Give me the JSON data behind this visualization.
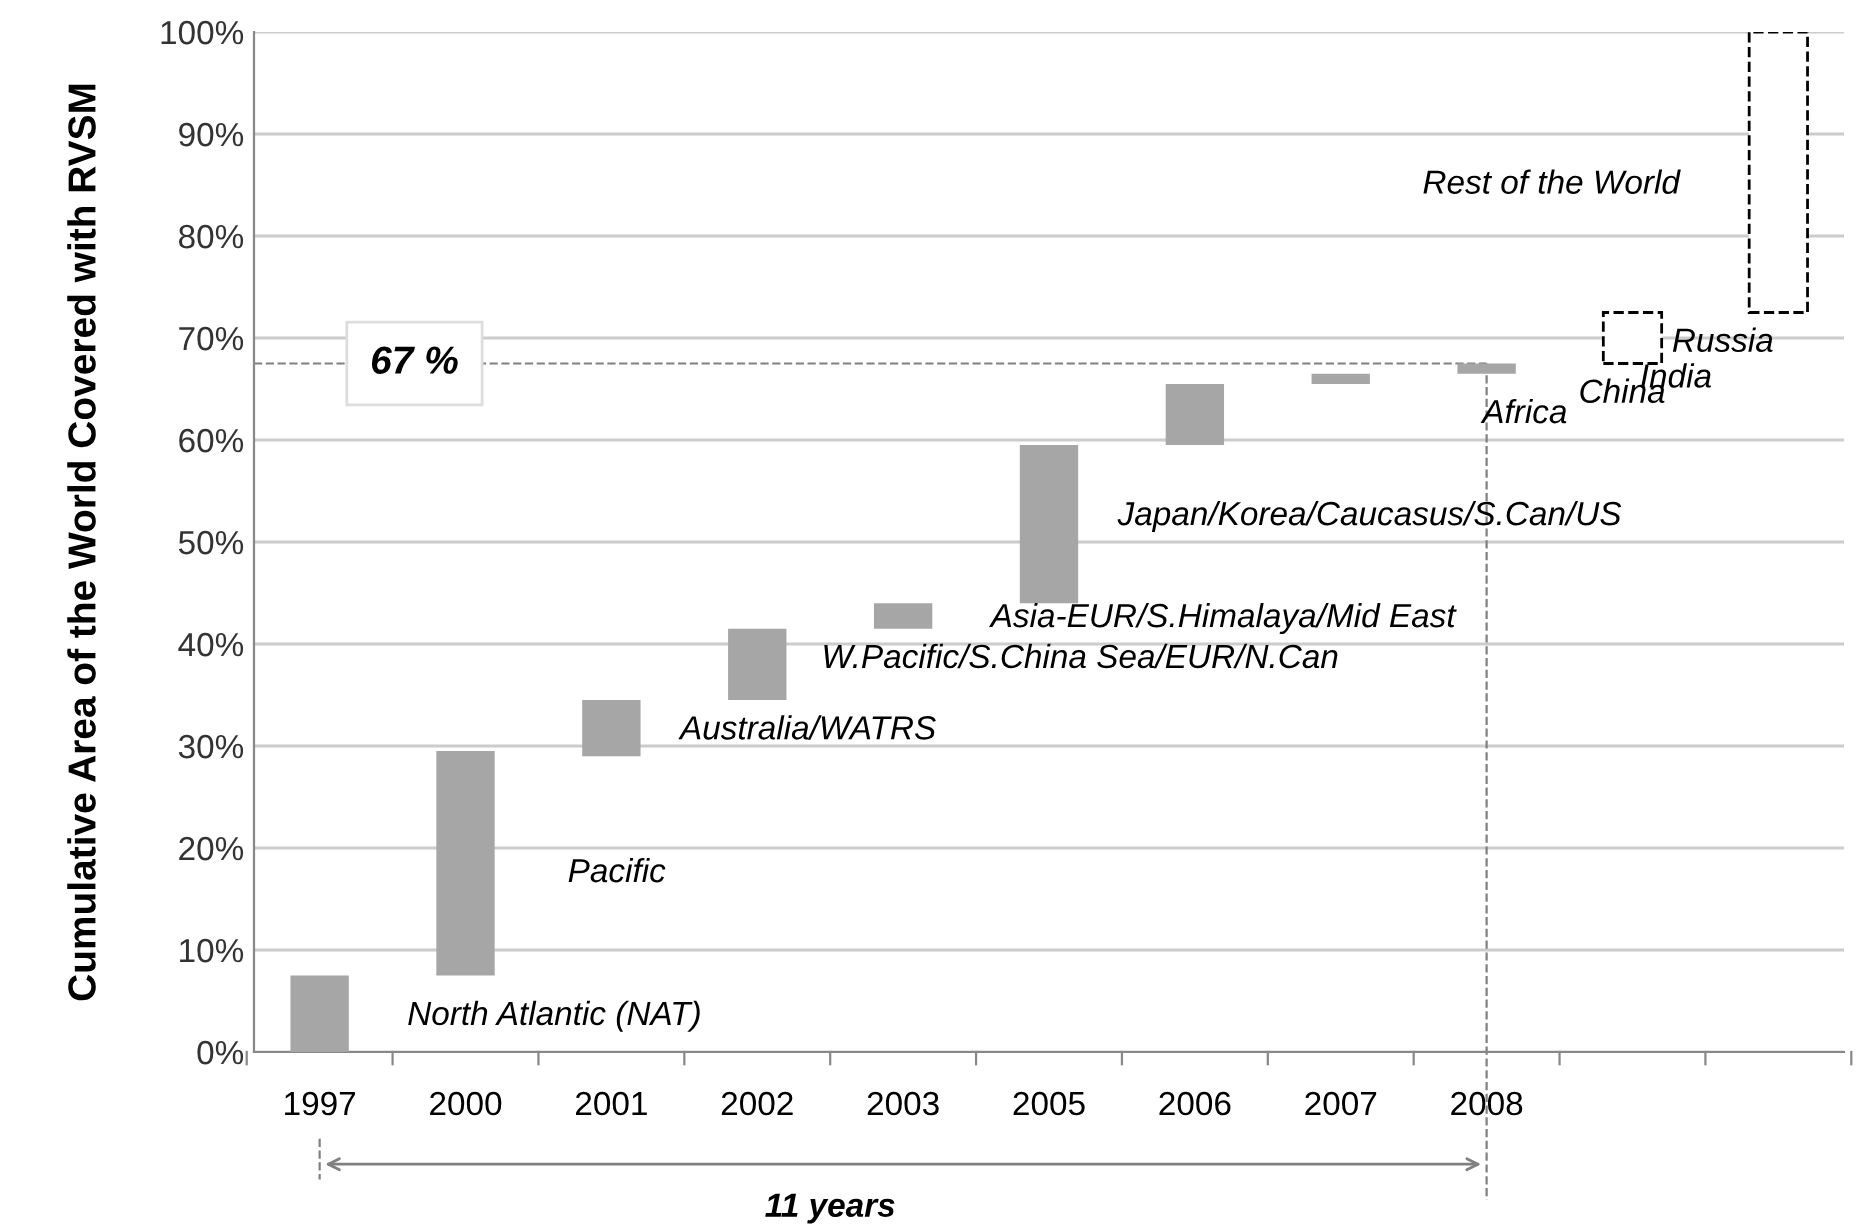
{
  "chart_data": {
    "type": "bar",
    "ylabel": "Cumulative Area of the World Covered with RVSM",
    "categories": [
      "1997",
      "2000",
      "2001",
      "2002",
      "2003",
      "2005",
      "2006",
      "2007",
      "2008",
      null,
      null
    ],
    "series": [
      {
        "color": "#a6a6a6",
        "base": [
          0,
          7.5,
          29,
          34.5,
          41.5,
          44,
          59.5,
          65.5,
          66.5,
          null,
          null
        ],
        "values": [
          7.5,
          22,
          5.5,
          7,
          2.5,
          15.5,
          6,
          1,
          1,
          null,
          null
        ]
      },
      {
        "color": "#ffffff",
        "line_style": "dashed",
        "base": [
          null,
          null,
          null,
          null,
          null,
          null,
          null,
          null,
          null,
          67.5,
          72.5
        ],
        "values": [
          null,
          null,
          null,
          null,
          null,
          null,
          null,
          null,
          null,
          5,
          27.5
        ]
      }
    ],
    "ylim": [
      0,
      100
    ],
    "yticks": [
      {
        "value": 0,
        "label": "0%"
      },
      {
        "value": 10,
        "label": "10%"
      },
      {
        "value": 20,
        "label": "20%"
      },
      {
        "value": 30,
        "label": "30%"
      },
      {
        "value": 40,
        "label": "40%"
      },
      {
        "value": 50,
        "label": "50%"
      },
      {
        "value": 60,
        "label": "60%"
      },
      {
        "value": 70,
        "label": "70%"
      },
      {
        "value": 80,
        "label": "80%"
      },
      {
        "value": 90,
        "label": "90%"
      },
      {
        "value": 100,
        "label": "100%"
      }
    ],
    "grid": "y",
    "ref_lines": [
      {
        "axis": "y",
        "value": 67.5,
        "label": "67 %",
        "color": "#808080",
        "line_style": "dashed"
      },
      {
        "axis": "x",
        "value": "2008",
        "color": "#808080",
        "line_style": "dashed"
      }
    ],
    "annotations": [
      "North Atlantic (NAT)",
      "Pacific",
      "Australia/WATRS",
      "W.Pacific/S.China Sea/EUR/N.Can",
      "Asia-EUR/S.Himalaya/Mid East",
      "Japan/Korea/Caucasus/S.Can/US",
      "Africa",
      "China",
      "India",
      "Russia",
      "Rest of the World",
      "11 years"
    ]
  }
}
